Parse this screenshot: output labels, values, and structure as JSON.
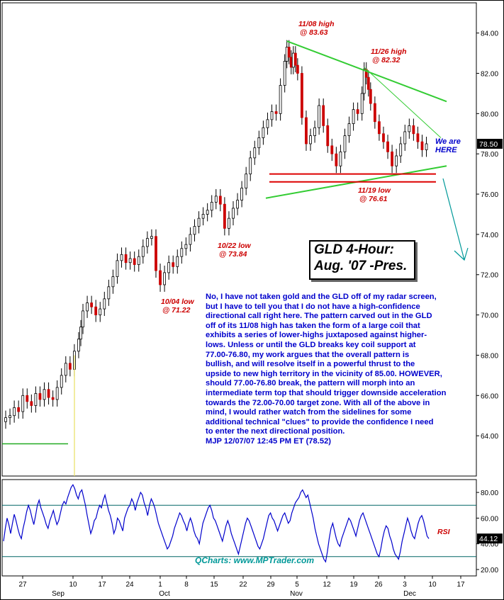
{
  "chart_data": [
    {
      "type": "candlestick",
      "title": "GLD 4-Hour: Aug. '07 -Pres.",
      "title_lines": [
        "GLD 4-Hour:",
        "Aug. '07 -Pres."
      ],
      "ylim": [
        62,
        85.5
      ],
      "y_ticks": [
        "84.00",
        "82.00",
        "80.00",
        "78.00",
        "76.00",
        "74.00",
        "72.00",
        "70.00",
        "68.00",
        "66.00",
        "64.00"
      ],
      "last_price": "78.50",
      "x_ticks": [
        "27",
        "10",
        "17",
        "24",
        "1",
        "8",
        "15",
        "22",
        "29",
        "5",
        "12",
        "19",
        "26",
        "3",
        "10",
        "17"
      ],
      "month_labels": [
        "Sep",
        "Oct",
        "Nov",
        "Dec"
      ],
      "series": [
        {
          "name": "GLD",
          "points": [
            [
              0,
              64.9
            ],
            [
              2,
              65.0
            ],
            [
              4,
              65.4
            ],
            [
              6,
              65.2
            ],
            [
              8,
              66.0
            ],
            [
              10,
              65.7
            ],
            [
              12,
              65.5
            ],
            [
              14,
              66.1
            ],
            [
              16,
              65.8
            ],
            [
              18,
              66.3
            ],
            [
              20,
              65.9
            ],
            [
              22,
              65.8
            ],
            [
              24,
              66.4
            ],
            [
              26,
              67.0
            ],
            [
              28,
              67.6
            ],
            [
              30,
              67.3
            ],
            [
              32,
              68.2
            ],
            [
              34,
              68.8
            ],
            [
              35,
              69.4
            ],
            [
              36,
              70.2
            ],
            [
              38,
              70.6
            ],
            [
              40,
              70.4
            ],
            [
              42,
              70.0
            ],
            [
              44,
              70.3
            ],
            [
              46,
              70.8
            ],
            [
              48,
              71.4
            ],
            [
              50,
              71.9
            ],
            [
              52,
              72.7
            ],
            [
              54,
              73.0
            ],
            [
              56,
              72.6
            ],
            [
              58,
              72.8
            ],
            [
              60,
              72.5
            ],
            [
              62,
              72.9
            ],
            [
              64,
              73.4
            ],
            [
              66,
              73.8
            ],
            [
              68,
              73.9
            ],
            [
              70,
              72.2
            ],
            [
              72,
              71.5
            ],
            [
              74,
              72.1
            ],
            [
              76,
              72.6
            ],
            [
              78,
              72.4
            ],
            [
              80,
              72.9
            ],
            [
              82,
              73.3
            ],
            [
              84,
              73.5
            ],
            [
              86,
              74.0
            ],
            [
              88,
              74.4
            ],
            [
              90,
              74.8
            ],
            [
              92,
              75.0
            ],
            [
              94,
              75.2
            ],
            [
              96,
              75.6
            ],
            [
              98,
              75.9
            ],
            [
              100,
              75.5
            ],
            [
              102,
              74.3
            ],
            [
              104,
              74.8
            ],
            [
              106,
              75.3
            ],
            [
              108,
              75.7
            ],
            [
              110,
              76.3
            ],
            [
              112,
              77.0
            ],
            [
              114,
              77.8
            ],
            [
              116,
              78.3
            ],
            [
              118,
              78.8
            ],
            [
              120,
              79.3
            ],
            [
              122,
              79.7
            ],
            [
              124,
              80.1
            ],
            [
              126,
              80.0
            ],
            [
              128,
              81.4
            ],
            [
              130,
              82.6
            ],
            [
              131,
              83.3
            ],
            [
              132,
              82.8
            ],
            [
              133,
              82.3
            ],
            [
              134,
              83.0
            ],
            [
              135,
              82.4
            ],
            [
              136,
              82.0
            ],
            [
              138,
              79.8
            ],
            [
              140,
              78.5
            ],
            [
              142,
              78.9
            ],
            [
              144,
              79.3
            ],
            [
              146,
              80.4
            ],
            [
              148,
              79.4
            ],
            [
              150,
              78.4
            ],
            [
              152,
              78.0
            ],
            [
              154,
              77.4
            ],
            [
              156,
              78.1
            ],
            [
              158,
              78.9
            ],
            [
              160,
              79.5
            ],
            [
              162,
              80.2
            ],
            [
              164,
              80.0
            ],
            [
              166,
              81.0
            ],
            [
              167,
              82.2
            ],
            [
              168,
              81.8
            ],
            [
              169,
              81.2
            ],
            [
              170,
              80.5
            ],
            [
              172,
              79.6
            ],
            [
              174,
              79.0
            ],
            [
              176,
              78.6
            ],
            [
              178,
              78.1
            ],
            [
              180,
              77.4
            ],
            [
              182,
              77.9
            ],
            [
              184,
              78.5
            ],
            [
              186,
              79.1
            ],
            [
              188,
              79.4
            ],
            [
              190,
              79.0
            ],
            [
              192,
              78.6
            ],
            [
              194,
              78.2
            ],
            [
              196,
              78.5
            ]
          ],
          "x_range": [
            0,
            212
          ]
        }
      ],
      "annotations": [
        {
          "lines": [
            "11/08 high",
            "@ 83.63"
          ]
        },
        {
          "lines": [
            "11/26 high",
            "@ 82.32"
          ]
        },
        {
          "lines": [
            "11/19 low",
            "@ 76.61"
          ]
        },
        {
          "lines": [
            "10/22 low",
            "@ 73.84"
          ]
        },
        {
          "lines": [
            "10/04 low",
            "@ 71.22"
          ]
        },
        {
          "lines": [
            "We are",
            "HERE"
          ]
        }
      ],
      "support_levels": [
        77.0,
        76.61
      ],
      "colors": {
        "annotation": "#cc0000",
        "commentary": "#0000cc",
        "trendline": "#33cc33",
        "support": "#dd0000",
        "arrow": "#009999"
      }
    },
    {
      "type": "line",
      "series_label": "RSI",
      "ylim": [
        15,
        90
      ],
      "y_ticks": [
        "80.00",
        "60.00",
        "40.00",
        "20.00"
      ],
      "reference_lines": [
        70,
        30
      ],
      "last_value": "44.12",
      "values": [
        42,
        52,
        60,
        55,
        48,
        56,
        63,
        58,
        52,
        47,
        44,
        52,
        58,
        65,
        70,
        66,
        60,
        55,
        62,
        70,
        74,
        68,
        64,
        60,
        55,
        52,
        58,
        62,
        66,
        60,
        55,
        58,
        64,
        70,
        73,
        71,
        76,
        80,
        84,
        86,
        83,
        78,
        75,
        80,
        82,
        76,
        70,
        62,
        55,
        48,
        52,
        58,
        60,
        66,
        70,
        68,
        74,
        78,
        72,
        66,
        62,
        56,
        48,
        52,
        60,
        58,
        54,
        50,
        60,
        64,
        68,
        70,
        75,
        72,
        66,
        72,
        76,
        80,
        78,
        72,
        68,
        62,
        70,
        75,
        72,
        68,
        62,
        56,
        52,
        48,
        44,
        40,
        36,
        38,
        42,
        46,
        52,
        56,
        60,
        64,
        62,
        58,
        55,
        50,
        56,
        60,
        56,
        50,
        46,
        44,
        40,
        48,
        56,
        60,
        64,
        68,
        70,
        66,
        60,
        58,
        54,
        50,
        46,
        42,
        48,
        54,
        58,
        54,
        48,
        44,
        40,
        36,
        32,
        38,
        44,
        50,
        56,
        60,
        58,
        54,
        50,
        46,
        42,
        38,
        36,
        40,
        44,
        50,
        56,
        62,
        64,
        60,
        58,
        54,
        50,
        54,
        58,
        62,
        64,
        60,
        56,
        58,
        64,
        68,
        72,
        74,
        76,
        80,
        82,
        79,
        76,
        78,
        72,
        66,
        60,
        52,
        46,
        40,
        36,
        32,
        28,
        26,
        34,
        44,
        52,
        56,
        50,
        44,
        40,
        38,
        44,
        48,
        52,
        56,
        60,
        58,
        54,
        50,
        46,
        52,
        58,
        62,
        64,
        60,
        56,
        52,
        48,
        44,
        40,
        36,
        32,
        30,
        36,
        44,
        50,
        54,
        52,
        46,
        42,
        36,
        32,
        30,
        28,
        34,
        42,
        48,
        54,
        60,
        56,
        50,
        46,
        44,
        50,
        56,
        60,
        62,
        58,
        52,
        46,
        44
      ]
    }
  ],
  "commentary_lines": [
    "No, I have not taken gold and the GLD off of my radar screen,",
    "but I have to tell you that I do not have a high-confidence",
    "directional call right here. The pattern carved out in the GLD",
    "off of its 11/08 high has taken the form of a large coil that",
    "exhibits a series of lower-highs juxtaposed against higher-",
    "lows. Unless or until the GLD breaks key coil support at",
    "77.00-76.80, my work argues that the overall pattern is",
    "bullish, and will resolve itself in a powerful thrust to the",
    "upside to new high territory in the vicinity of 85.00. HOWEVER,",
    "should 77.00-76.80 break, the pattern will morph into an",
    "intermediate term top that should trigger downside acceleration",
    "towards the 72.00-70.00 target zone. With all of the above in",
    "mind, I would rather watch from the sidelines for some",
    "additional technical \"clues\" to provide the confidence I need",
    "to enter the next directional position.",
    "MJP  12/07/07 12:45 PM ET (78.52)"
  ],
  "footer": "QCharts: www.MPTrader.com"
}
